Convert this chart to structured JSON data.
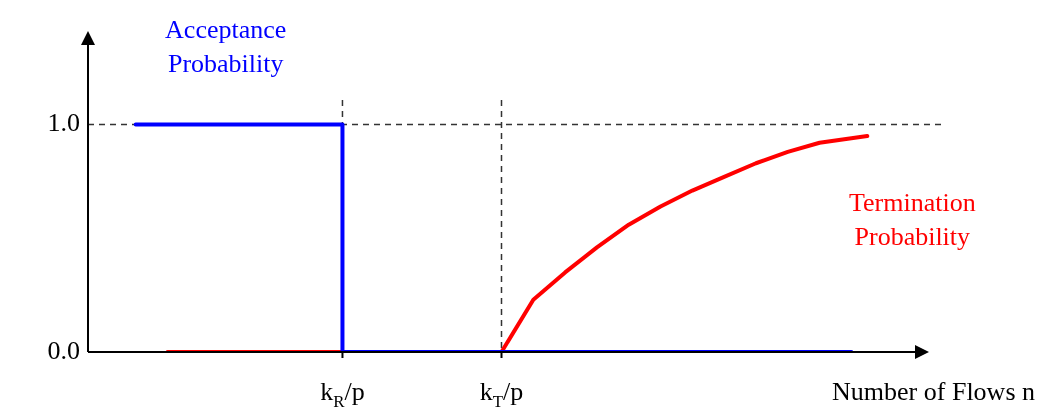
{
  "chart_data": {
    "type": "line",
    "xlabel": "Number of Flows n",
    "categories": [
      null,
      null,
      null,
      null,
      null,
      null,
      null,
      null,
      null,
      null,
      null,
      null,
      null,
      "k$_{R}$/p",
      null,
      null,
      null,
      null,
      null,
      null,
      null,
      null,
      null,
      "k$_{T}$/p",
      null,
      null,
      null,
      null,
      null,
      null,
      null,
      null,
      null,
      null,
      null,
      null,
      null,
      null,
      null,
      null,
      null,
      null,
      null,
      null,
      null,
      null,
      null,
      null
    ],
    "ylim": [
      0,
      1.35
    ],
    "yticks": [
      {
        "value": 0,
        "label": "0.0"
      },
      {
        "value": 1,
        "label": "1.0"
      }
    ],
    "grid": false,
    "legend": false,
    "marker": "none",
    "line_style": "solid",
    "series": [
      {
        "name": "Acceptance Probability",
        "type": "step",
        "color": "#0000ff",
        "values": [
          1,
          null,
          null,
          null,
          null,
          null,
          null,
          null,
          null,
          null,
          null,
          null,
          1,
          0,
          null,
          null,
          null,
          null,
          null,
          null,
          null,
          null,
          null,
          null,
          null,
          null,
          null,
          null,
          null,
          null,
          null,
          null,
          null,
          null,
          null,
          null,
          null,
          null,
          null,
          null,
          null,
          null,
          null,
          null,
          null,
          0,
          null,
          null
        ]
      },
      {
        "name": "Termination Probability",
        "color": "#ff0000",
        "values": [
          null,
          null,
          0,
          null,
          null,
          null,
          null,
          null,
          null,
          null,
          null,
          null,
          null,
          null,
          null,
          null,
          null,
          null,
          null,
          null,
          null,
          null,
          null,
          0,
          null,
          0.23,
          null,
          0.35,
          null,
          0.46,
          null,
          0.56,
          null,
          0.64,
          null,
          0.71,
          null,
          0.77,
          null,
          0.83,
          null,
          0.88,
          null,
          0.92,
          null,
          0.94,
          0.95,
          null
        ]
      }
    ],
    "ref_lines": [
      {
        "axis": "x",
        "value": "k$_{R}$/p",
        "color": "#333333",
        "line_style": "dashed"
      },
      {
        "axis": "x",
        "value": "k$_{T}$/p",
        "color": "#333333",
        "line_style": "dashed"
      },
      {
        "axis": "y",
        "value": 1,
        "color": "#333333",
        "line_style": "dashed"
      }
    ]
  }
}
